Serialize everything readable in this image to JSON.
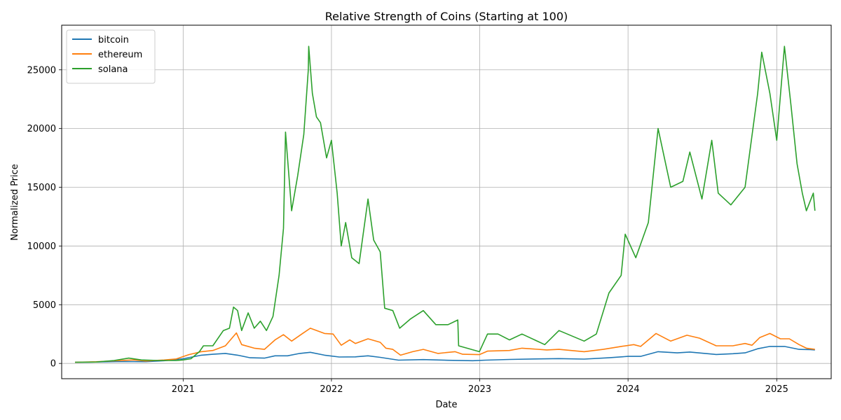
{
  "chart_data": {
    "type": "line",
    "title": "Relative Strength of Coins (Starting at 100)",
    "xlabel": "Date",
    "ylabel": "Normalized Price",
    "x_ticks": [
      "2021",
      "2022",
      "2023",
      "2024",
      "2025"
    ],
    "y_ticks": [
      0,
      5000,
      10000,
      15000,
      20000,
      25000
    ],
    "xlim": [
      "2020-03-08",
      "2025-05-15"
    ],
    "ylim": [
      -1300,
      28800
    ],
    "grid": true,
    "legend_position": "top-left",
    "series": [
      {
        "name": "bitcoin",
        "color": "#1f77b4",
        "points": [
          [
            "2020-04-10",
            100
          ],
          [
            "2020-06-01",
            120
          ],
          [
            "2020-08-01",
            160
          ],
          [
            "2020-10-01",
            150
          ],
          [
            "2020-11-15",
            230
          ],
          [
            "2021-01-01",
            400
          ],
          [
            "2021-02-15",
            700
          ],
          [
            "2021-03-15",
            780
          ],
          [
            "2021-04-15",
            850
          ],
          [
            "2021-05-15",
            700
          ],
          [
            "2021-06-15",
            480
          ],
          [
            "2021-07-20",
            450
          ],
          [
            "2021-08-15",
            650
          ],
          [
            "2021-09-15",
            650
          ],
          [
            "2021-10-15",
            850
          ],
          [
            "2021-11-10",
            950
          ],
          [
            "2021-12-15",
            700
          ],
          [
            "2022-01-20",
            550
          ],
          [
            "2022-03-01",
            560
          ],
          [
            "2022-04-01",
            650
          ],
          [
            "2022-05-01",
            520
          ],
          [
            "2022-06-15",
            280
          ],
          [
            "2022-08-15",
            330
          ],
          [
            "2022-10-15",
            270
          ],
          [
            "2022-12-15",
            230
          ],
          [
            "2023-01-15",
            280
          ],
          [
            "2023-03-15",
            340
          ],
          [
            "2023-05-15",
            380
          ],
          [
            "2023-07-15",
            410
          ],
          [
            "2023-09-15",
            370
          ],
          [
            "2023-11-15",
            480
          ],
          [
            "2024-01-01",
            600
          ],
          [
            "2024-02-01",
            600
          ],
          [
            "2024-03-15",
            1000
          ],
          [
            "2024-05-01",
            900
          ],
          [
            "2024-06-01",
            970
          ],
          [
            "2024-08-05",
            760
          ],
          [
            "2024-09-15",
            830
          ],
          [
            "2024-10-15",
            900
          ],
          [
            "2024-11-15",
            1250
          ],
          [
            "2024-12-15",
            1450
          ],
          [
            "2025-01-20",
            1450
          ],
          [
            "2025-02-25",
            1200
          ],
          [
            "2025-03-25",
            1180
          ],
          [
            "2025-04-05",
            1150
          ]
        ]
      },
      {
        "name": "ethereum",
        "color": "#ff7f0e",
        "points": [
          [
            "2020-04-10",
            100
          ],
          [
            "2020-06-01",
            140
          ],
          [
            "2020-08-01",
            250
          ],
          [
            "2020-09-01",
            300
          ],
          [
            "2020-10-01",
            210
          ],
          [
            "2020-11-15",
            290
          ],
          [
            "2020-12-15",
            380
          ],
          [
            "2021-01-15",
            750
          ],
          [
            "2021-02-15",
            1000
          ],
          [
            "2021-03-15",
            1100
          ],
          [
            "2021-04-15",
            1500
          ],
          [
            "2021-05-12",
            2600
          ],
          [
            "2021-05-25",
            1600
          ],
          [
            "2021-06-25",
            1300
          ],
          [
            "2021-07-20",
            1200
          ],
          [
            "2021-08-15",
            2000
          ],
          [
            "2021-09-05",
            2450
          ],
          [
            "2021-09-25",
            1900
          ],
          [
            "2021-10-20",
            2500
          ],
          [
            "2021-11-10",
            3000
          ],
          [
            "2021-12-15",
            2550
          ],
          [
            "2022-01-05",
            2500
          ],
          [
            "2022-01-25",
            1550
          ],
          [
            "2022-02-15",
            2000
          ],
          [
            "2022-03-01",
            1700
          ],
          [
            "2022-04-01",
            2100
          ],
          [
            "2022-05-01",
            1800
          ],
          [
            "2022-05-15",
            1300
          ],
          [
            "2022-06-01",
            1200
          ],
          [
            "2022-06-20",
            700
          ],
          [
            "2022-07-20",
            1000
          ],
          [
            "2022-08-15",
            1200
          ],
          [
            "2022-09-20",
            850
          ],
          [
            "2022-11-01",
            1000
          ],
          [
            "2022-11-20",
            780
          ],
          [
            "2022-12-31",
            750
          ],
          [
            "2023-01-20",
            1050
          ],
          [
            "2023-03-15",
            1100
          ],
          [
            "2023-04-15",
            1300
          ],
          [
            "2023-06-15",
            1150
          ],
          [
            "2023-07-15",
            1200
          ],
          [
            "2023-09-15",
            1000
          ],
          [
            "2023-11-01",
            1200
          ],
          [
            "2023-12-15",
            1450
          ],
          [
            "2024-01-15",
            1600
          ],
          [
            "2024-02-01",
            1450
          ],
          [
            "2024-03-10",
            2550
          ],
          [
            "2024-04-15",
            1900
          ],
          [
            "2024-05-25",
            2400
          ],
          [
            "2024-06-25",
            2150
          ],
          [
            "2024-08-05",
            1500
          ],
          [
            "2024-09-15",
            1500
          ],
          [
            "2024-10-15",
            1700
          ],
          [
            "2024-11-01",
            1550
          ],
          [
            "2024-11-20",
            2200
          ],
          [
            "2024-12-15",
            2550
          ],
          [
            "2025-01-10",
            2100
          ],
          [
            "2025-02-01",
            2100
          ],
          [
            "2025-02-25",
            1600
          ],
          [
            "2025-03-15",
            1300
          ],
          [
            "2025-04-05",
            1200
          ]
        ]
      },
      {
        "name": "solana",
        "color": "#2ca02c",
        "points": [
          [
            "2020-04-10",
            100
          ],
          [
            "2020-06-01",
            120
          ],
          [
            "2020-07-15",
            250
          ],
          [
            "2020-08-20",
            450
          ],
          [
            "2020-09-20",
            300
          ],
          [
            "2020-11-01",
            250
          ],
          [
            "2020-12-15",
            250
          ],
          [
            "2021-01-01",
            300
          ],
          [
            "2021-01-20",
            400
          ],
          [
            "2021-02-10",
            1000
          ],
          [
            "2021-02-20",
            1500
          ],
          [
            "2021-03-15",
            1500
          ],
          [
            "2021-04-10",
            2800
          ],
          [
            "2021-04-25",
            3000
          ],
          [
            "2021-05-05",
            4800
          ],
          [
            "2021-05-15",
            4500
          ],
          [
            "2021-05-25",
            2800
          ],
          [
            "2021-06-10",
            4300
          ],
          [
            "2021-06-25",
            3000
          ],
          [
            "2021-07-10",
            3600
          ],
          [
            "2021-07-25",
            2800
          ],
          [
            "2021-08-10",
            4000
          ],
          [
            "2021-08-25",
            7500
          ],
          [
            "2021-09-05",
            11500
          ],
          [
            "2021-09-10",
            19700
          ],
          [
            "2021-09-25",
            13000
          ],
          [
            "2021-10-10",
            16000
          ],
          [
            "2021-10-25",
            19500
          ],
          [
            "2021-11-05",
            25000
          ],
          [
            "2021-11-06",
            27000
          ],
          [
            "2021-11-15",
            23000
          ],
          [
            "2021-11-25",
            21000
          ],
          [
            "2021-12-05",
            20500
          ],
          [
            "2021-12-20",
            17500
          ],
          [
            "2022-01-01",
            19000
          ],
          [
            "2022-01-15",
            14500
          ],
          [
            "2022-01-25",
            10000
          ],
          [
            "2022-02-05",
            12000
          ],
          [
            "2022-02-20",
            9000
          ],
          [
            "2022-03-10",
            8500
          ],
          [
            "2022-04-01",
            14000
          ],
          [
            "2022-04-15",
            10500
          ],
          [
            "2022-05-01",
            9500
          ],
          [
            "2022-05-12",
            4700
          ],
          [
            "2022-06-01",
            4500
          ],
          [
            "2022-06-18",
            3000
          ],
          [
            "2022-07-15",
            3800
          ],
          [
            "2022-08-15",
            4500
          ],
          [
            "2022-09-15",
            3300
          ],
          [
            "2022-10-15",
            3300
          ],
          [
            "2022-11-08",
            3700
          ],
          [
            "2022-11-10",
            1500
          ],
          [
            "2022-12-31",
            1000
          ],
          [
            "2023-01-20",
            2500
          ],
          [
            "2023-02-15",
            2500
          ],
          [
            "2023-03-15",
            2000
          ],
          [
            "2023-04-15",
            2500
          ],
          [
            "2023-06-10",
            1600
          ],
          [
            "2023-07-15",
            2800
          ],
          [
            "2023-09-15",
            1900
          ],
          [
            "2023-10-15",
            2500
          ],
          [
            "2023-11-15",
            6000
          ],
          [
            "2023-12-15",
            7500
          ],
          [
            "2023-12-25",
            11000
          ],
          [
            "2024-01-20",
            9000
          ],
          [
            "2024-02-20",
            12000
          ],
          [
            "2024-03-15",
            20000
          ],
          [
            "2024-04-15",
            15000
          ],
          [
            "2024-05-15",
            15500
          ],
          [
            "2024-06-01",
            18000
          ],
          [
            "2024-07-01",
            14000
          ],
          [
            "2024-07-25",
            19000
          ],
          [
            "2024-08-10",
            14500
          ],
          [
            "2024-09-10",
            13500
          ],
          [
            "2024-10-15",
            15000
          ],
          [
            "2024-11-15",
            23000
          ],
          [
            "2024-11-25",
            26500
          ],
          [
            "2024-12-15",
            23000
          ],
          [
            "2025-01-01",
            19000
          ],
          [
            "2025-01-20",
            27000
          ],
          [
            "2025-02-05",
            22000
          ],
          [
            "2025-02-20",
            17000
          ],
          [
            "2025-03-05",
            14500
          ],
          [
            "2025-03-15",
            13000
          ],
          [
            "2025-04-01",
            14500
          ],
          [
            "2025-04-05",
            13000
          ]
        ]
      }
    ]
  }
}
